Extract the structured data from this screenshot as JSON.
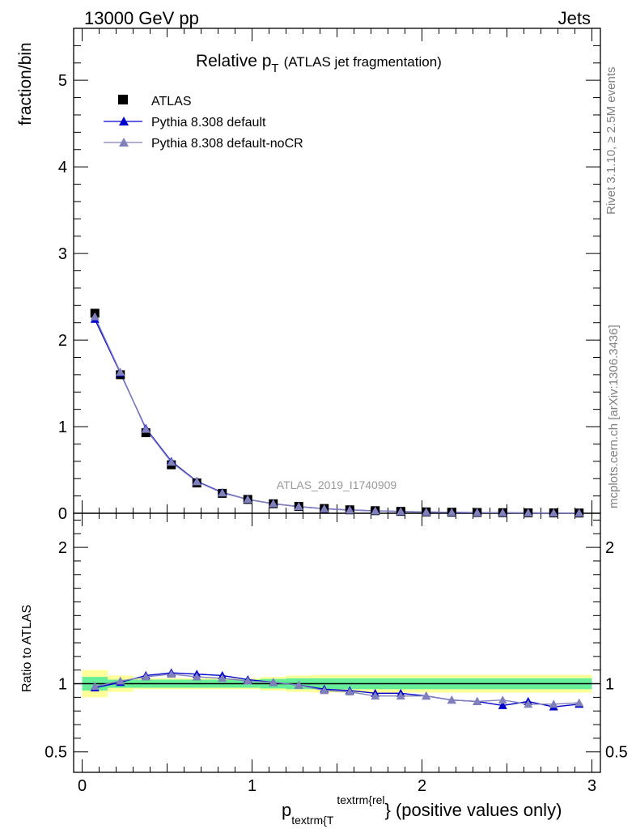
{
  "header": {
    "left": "13000 GeV pp",
    "right": "Jets"
  },
  "title": {
    "main": "Relative p",
    "sub": "T",
    "paren": "(ATLAS jet fragmentation)"
  },
  "side": {
    "rivet": "Rivet 3.1.10, ≥ 2.5M events",
    "mcplots": "mcplots.cern.ch [arXiv:1306.3436]"
  },
  "analysis_label": "ATLAS_2019_I1740909",
  "xlabel": {
    "p": "p",
    "sub": "textrm{T",
    "sup": "textrm{rel",
    "close": "}",
    "tail": " (positive values only)"
  },
  "chart_data": [
    {
      "type": "scatter",
      "panel": "main",
      "ylabel": "fraction/bin",
      "xlim": [
        -0.05,
        3.05
      ],
      "ylim": [
        0,
        5.6
      ],
      "x_ticks": [
        0,
        1,
        2,
        3
      ],
      "y_ticks": [
        0,
        1,
        2,
        3,
        4,
        5
      ],
      "y_tick_labels": [
        "0",
        "1",
        "2",
        "3",
        "4",
        "5"
      ],
      "legend_position": "top-left",
      "x": [
        0.075,
        0.225,
        0.375,
        0.525,
        0.675,
        0.825,
        0.975,
        1.125,
        1.275,
        1.425,
        1.575,
        1.725,
        1.875,
        2.025,
        2.175,
        2.325,
        2.475,
        2.625,
        2.775,
        2.925
      ],
      "series": [
        {
          "name": "ATLAS",
          "color": "#000000",
          "marker": "square",
          "values": [
            2.31,
            1.6,
            0.93,
            0.56,
            0.35,
            0.23,
            0.16,
            0.11,
            0.08,
            0.055,
            0.04,
            0.03,
            0.022,
            0.016,
            0.012,
            0.009,
            0.007,
            0.005,
            0.004,
            0.003
          ]
        },
        {
          "name": "Pythia 8.308 default",
          "color": "#0000cc",
          "marker": "triangle",
          "values": [
            2.24,
            1.62,
            0.98,
            0.6,
            0.37,
            0.24,
            0.16,
            0.11,
            0.077,
            0.052,
            0.038,
            0.028,
            0.02,
            0.014,
            0.0105,
            0.0078,
            0.0058,
            0.0043,
            0.0033,
            0.0026
          ]
        },
        {
          "name": "Pythia 8.308 default-noCR",
          "color": "#8080bb",
          "marker": "triangle",
          "values": [
            2.27,
            1.63,
            0.97,
            0.59,
            0.365,
            0.235,
            0.16,
            0.111,
            0.078,
            0.052,
            0.037,
            0.027,
            0.02,
            0.0144,
            0.0106,
            0.0077,
            0.006,
            0.0042,
            0.0034,
            0.0026
          ]
        }
      ]
    },
    {
      "type": "scatter",
      "panel": "ratio",
      "ylabel": "Ratio to ATLAS",
      "xlim": [
        -0.05,
        3.05
      ],
      "ylim": [
        0.35,
        2.25
      ],
      "x_ticks": [
        0,
        1,
        2,
        3
      ],
      "x_tick_labels": [
        "0",
        "1",
        "2",
        "3"
      ],
      "y_ticks": [
        0.5,
        1,
        2
      ],
      "y_tick_labels": [
        "0.5",
        "1",
        "2"
      ],
      "x": [
        0.075,
        0.225,
        0.375,
        0.525,
        0.675,
        0.825,
        0.975,
        1.125,
        1.275,
        1.425,
        1.575,
        1.725,
        1.875,
        2.025,
        2.175,
        2.325,
        2.475,
        2.625,
        2.775,
        2.925
      ],
      "band_inner": [
        0.05,
        0.03,
        0.03,
        0.03,
        0.03,
        0.03,
        0.03,
        0.035,
        0.04,
        0.04,
        0.04,
        0.04,
        0.04,
        0.04,
        0.04,
        0.04,
        0.04,
        0.04,
        0.04,
        0.04
      ],
      "band_outer": [
        0.1,
        0.06,
        0.04,
        0.04,
        0.04,
        0.04,
        0.04,
        0.05,
        0.06,
        0.065,
        0.065,
        0.065,
        0.065,
        0.065,
        0.065,
        0.065,
        0.065,
        0.065,
        0.065,
        0.065
      ],
      "series": [
        {
          "name": "Pythia 8.308 default",
          "color": "#0000cc",
          "values": [
            0.97,
            1.01,
            1.06,
            1.08,
            1.07,
            1.06,
            1.03,
            1.01,
            0.99,
            0.96,
            0.95,
            0.93,
            0.93,
            0.91,
            0.88,
            0.87,
            0.84,
            0.87,
            0.83,
            0.85
          ]
        },
        {
          "name": "Pythia 8.308 default-noCR",
          "color": "#8080bb",
          "values": [
            0.98,
            1.02,
            1.05,
            1.07,
            1.05,
            1.04,
            1.02,
            1.01,
            0.99,
            0.95,
            0.94,
            0.91,
            0.91,
            0.91,
            0.88,
            0.87,
            0.88,
            0.85,
            0.85,
            0.86
          ]
        }
      ]
    }
  ]
}
